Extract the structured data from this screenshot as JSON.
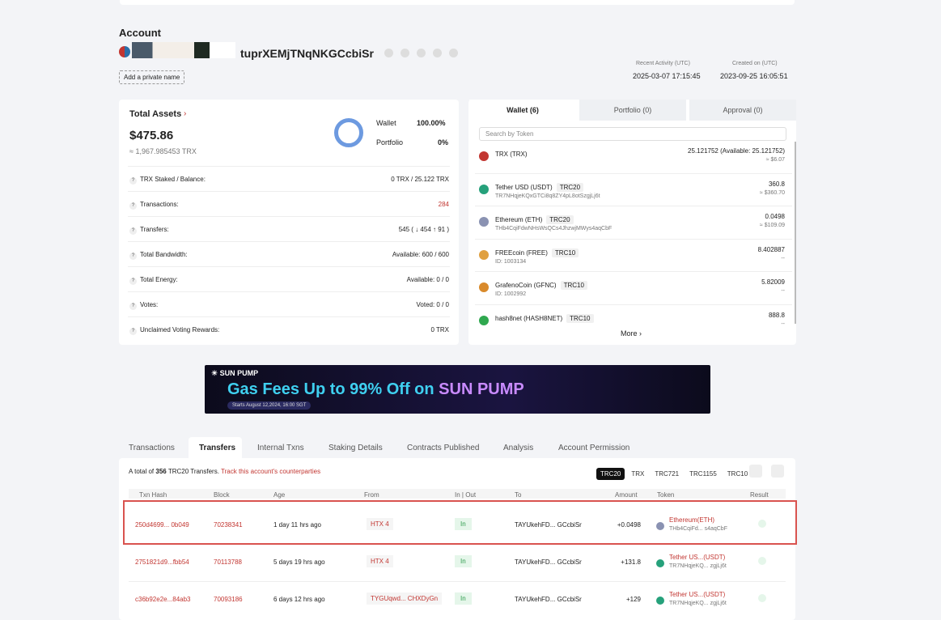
{
  "account": {
    "label": "Account",
    "address": "tuprXEMjTNqNKGCcbiSr",
    "private_name": "Add a private name",
    "recent_activity_label": "Recent Activity (UTC)",
    "recent_activity": "2025-03-07 17:15:45",
    "created_label": "Created on (UTC)",
    "created": "2023-09-25 16:05:51"
  },
  "assets": {
    "title": "Total Assets",
    "usd": "$475.86",
    "trx": "≈ 1,967.985453 TRX",
    "wallet_label": "Wallet",
    "wallet_pct": "100.00%",
    "portfolio_label": "Portfolio",
    "portfolio_pct": "0%",
    "rows": [
      {
        "label": "TRX Staked / Balance:",
        "value": "0 TRX / 25.122 TRX"
      },
      {
        "label": "Transactions:",
        "value": "284"
      },
      {
        "label": "Transfers:",
        "value": "545 ( ↓ 454 ↑ 91 )"
      },
      {
        "label": "Total Bandwidth:",
        "value": "Available: 600 / 600"
      },
      {
        "label": "Total Energy:",
        "value": "Available: 0 / 0"
      },
      {
        "label": "Votes:",
        "value": "Voted: 0 / 0"
      },
      {
        "label": "Unclaimed Voting Rewards:",
        "value": "0 TRX"
      }
    ]
  },
  "wallet": {
    "tabs": [
      "Wallet (6)",
      "Portfolio (0)",
      "Approval (0)"
    ],
    "search": "Search by Token",
    "more": "More ›",
    "tokens": [
      {
        "name": "TRX (TRX)",
        "amount": "25.121752 (Available: 25.121752)",
        "sub": "≈ $6.07",
        "color": "#c23631"
      },
      {
        "name": "Tether USD (USDT)",
        "tag": "TRC20",
        "id": "TR7NHqjeKQxGTCi8q8ZY4pL8otSzgjLj6t",
        "amount": "360.8",
        "sub": "≈ $360.70",
        "color": "#26a17b"
      },
      {
        "name": "Ethereum (ETH)",
        "tag": "TRC20",
        "id": "THb4CqiFdwNHsWsQCs4JhzwjMWys4aqCbF",
        "amount": "0.0498",
        "sub": "≈ $109.09",
        "color": "#8a92b2"
      },
      {
        "name": "FREEcoin (FREE)",
        "tag": "TRC10",
        "id": "ID: 1003134",
        "amount": "8.402887",
        "sub": "--",
        "color": "#e0a040"
      },
      {
        "name": "GrafenoCoin (GFNC)",
        "tag": "TRC10",
        "id": "ID: 1002992",
        "amount": "5.82009",
        "sub": "--",
        "color": "#d98a2b"
      },
      {
        "name": "hash8net (HASH8NET)",
        "tag": "TRC10",
        "amount": "888.8",
        "sub": "--",
        "color": "#2fa84f"
      }
    ]
  },
  "banner": {
    "brand": "SUN PUMP",
    "headline": "Gas Fees Up to 99% Off on",
    "headline_brand": "SUN PUMP",
    "date": "Starts August 12,2024, 16:00 SGT"
  },
  "tabs": [
    "Transactions",
    "Transfers",
    "Internal Txns",
    "Staking Details",
    "Contracts Published",
    "Analysis",
    "Account Permission"
  ],
  "transfers": {
    "summary_prefix": "A total of",
    "count": "356",
    "summary_suffix": "TRC20 Transfers.",
    "track": "Track this account's counterparties",
    "filters": [
      "TRC20",
      "TRX",
      "TRC721",
      "TRC1155",
      "TRC10"
    ],
    "headers": [
      "Txn Hash",
      "Block",
      "Age",
      "From",
      "In | Out",
      "To",
      "Amount",
      "Token",
      "Result"
    ],
    "rows": [
      [
        "250d4699... 0b049",
        "70238341",
        "1 day 11 hrs ago",
        "HTX 4",
        "In",
        "TAYUkehFD... GCcbiSr",
        "+0.0498",
        "Ethereum(ETH)",
        "THb4CqiFd... s4aqCbF"
      ],
      [
        "2751821d9...fbb54",
        "70113788",
        "5 days 19 hrs ago",
        "HTX 4",
        "In",
        "TAYUkehFD... GCcbiSr",
        "+131.8",
        "Tether US...(USDT)",
        "TR7NHqjeKQ... zgjLj6t"
      ],
      [
        "c36b92e2e...84ab3",
        "70093186",
        "6 days 12 hrs ago",
        "TYGUqwd... CHXDyGn",
        "In",
        "TAYUkehFD... GCcbiSr",
        "+129",
        "Tether US...(USDT)",
        "TR7NHqjeKQ... zgjLj6t"
      ]
    ]
  }
}
